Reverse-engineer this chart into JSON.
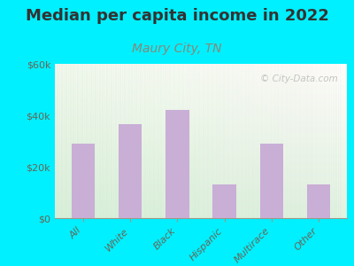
{
  "title": "Median per capita income in 2022",
  "subtitle": "Maury City, TN",
  "categories": [
    "All",
    "White",
    "Black",
    "Hispanic",
    "Multirace",
    "Other"
  ],
  "values": [
    29000,
    36500,
    42000,
    13000,
    29000,
    13000
  ],
  "bar_color": "#c9aed6",
  "ylim": [
    0,
    60000
  ],
  "yticks": [
    0,
    20000,
    40000,
    60000
  ],
  "ytick_labels": [
    "$0",
    "$20k",
    "$40k",
    "$60k"
  ],
  "background_outer": "#00f0ff",
  "title_color": "#333333",
  "title_fontsize": 13,
  "subtitle_fontsize": 10,
  "subtitle_color": "#888877",
  "tick_label_color": "#666655",
  "watermark_text": "© City-Data.com",
  "watermark_color": "#bbbbbb"
}
